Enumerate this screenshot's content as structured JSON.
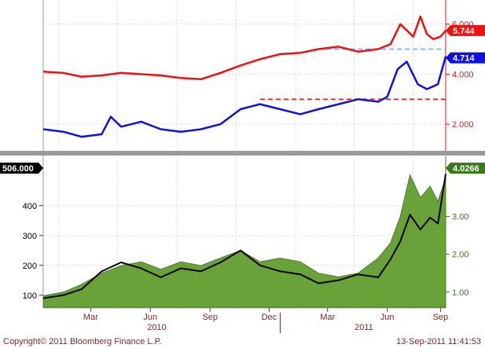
{
  "colors": {
    "red_series": "#ee1111",
    "blue_series": "#1111dd",
    "black_series": "#000000",
    "green_area": "#6aa23a",
    "green_axis": "#3a7a1a",
    "red_axis": "#ee1111",
    "grid": "#cccccc"
  },
  "footer": {
    "copyright": "Copyright© 2011 Bloomberg Finance L.P.",
    "timestamp": "13-Sep-2011 11:41:53"
  },
  "x_axis": {
    "months": [
      "Mar",
      "Jun",
      "Sep",
      "Dec",
      "Mar",
      "Jun",
      "Sep"
    ],
    "years": [
      "2010",
      "2011"
    ]
  },
  "chart_data": [
    {
      "type": "line",
      "panel": "top",
      "y_axis": {
        "side": "right",
        "ticks": [
          "6.000",
          "4.000",
          "2.000"
        ],
        "tick_values": [
          6,
          4,
          2
        ],
        "range": [
          1,
          6.9
        ]
      },
      "x_range": [
        "2010-01-01",
        "2011-09-13"
      ],
      "series": [
        {
          "color": "red",
          "last_value_label": "5.744",
          "x": [
            "2010-01-01",
            "2010-02-01",
            "2010-03-01",
            "2010-04-01",
            "2010-05-01",
            "2010-06-01",
            "2010-07-01",
            "2010-08-01",
            "2010-09-01",
            "2010-10-01",
            "2010-11-01",
            "2010-12-01",
            "2011-01-01",
            "2011-02-01",
            "2011-03-01",
            "2011-04-01",
            "2011-05-01",
            "2011-06-01",
            "2011-06-20",
            "2011-07-05",
            "2011-07-25",
            "2011-08-05",
            "2011-08-15",
            "2011-08-25",
            "2011-09-05",
            "2011-09-13"
          ],
          "y": [
            4.1,
            4.05,
            3.9,
            3.95,
            4.05,
            4.0,
            3.95,
            3.85,
            3.8,
            4.05,
            4.35,
            4.6,
            4.8,
            4.85,
            5.0,
            5.1,
            4.9,
            5.0,
            5.2,
            6.0,
            5.5,
            6.3,
            5.6,
            5.4,
            5.5,
            5.744
          ]
        },
        {
          "color": "blue",
          "last_value_label": "4.714",
          "x": [
            "2010-01-01",
            "2010-02-01",
            "2010-03-01",
            "2010-04-01",
            "2010-04-15",
            "2010-05-01",
            "2010-06-01",
            "2010-07-01",
            "2010-08-01",
            "2010-09-01",
            "2010-10-01",
            "2010-11-01",
            "2010-12-01",
            "2011-01-01",
            "2011-02-01",
            "2011-03-01",
            "2011-04-01",
            "2011-05-01",
            "2011-06-01",
            "2011-06-15",
            "2011-07-01",
            "2011-07-15",
            "2011-08-01",
            "2011-08-15",
            "2011-09-01",
            "2011-09-13"
          ],
          "y": [
            1.8,
            1.7,
            1.5,
            1.6,
            2.3,
            1.9,
            2.1,
            1.8,
            1.7,
            1.8,
            2.0,
            2.6,
            2.8,
            2.6,
            2.4,
            2.6,
            2.8,
            3.0,
            2.9,
            3.1,
            4.2,
            4.5,
            3.6,
            3.4,
            3.6,
            4.714
          ]
        }
      ],
      "reference_lines": [
        {
          "value": 3.0,
          "style": "dashed",
          "color": "red",
          "from": "2010-12-01"
        },
        {
          "value": 5.0,
          "style": "dashed",
          "color": "lightblue",
          "from": "2011-03-01"
        }
      ]
    },
    {
      "type": "area",
      "panel": "bottom",
      "y_axis_left": {
        "ticks": [
          "400",
          "300",
          "200",
          "100"
        ],
        "tick_values": [
          400,
          300,
          200,
          100
        ],
        "range": [
          60,
          560
        ],
        "last_value_label": "506.000"
      },
      "y_axis_right": {
        "ticks": [
          "3.00",
          "2.00",
          "1.00"
        ],
        "tick_values": [
          3,
          2,
          1
        ],
        "range": [
          0.6,
          4.55
        ],
        "last_value_label": "4.0266"
      },
      "x_range": [
        "2010-01-01",
        "2011-09-13"
      ],
      "series": [
        {
          "color": "green",
          "axis": "right",
          "x": [
            "2010-01-01",
            "2010-02-01",
            "2010-03-01",
            "2010-04-01",
            "2010-05-01",
            "2010-06-01",
            "2010-07-01",
            "2010-08-01",
            "2010-09-01",
            "2010-10-01",
            "2010-11-01",
            "2010-12-01",
            "2011-01-01",
            "2011-02-01",
            "2011-03-01",
            "2011-04-01",
            "2011-05-01",
            "2011-06-01",
            "2011-06-20",
            "2011-07-05",
            "2011-07-20",
            "2011-08-05",
            "2011-08-20",
            "2011-09-01",
            "2011-09-13"
          ],
          "y": [
            0.9,
            1.0,
            1.2,
            1.5,
            1.7,
            1.8,
            1.6,
            1.8,
            1.7,
            1.9,
            2.1,
            1.8,
            1.9,
            1.8,
            1.5,
            1.4,
            1.5,
            1.9,
            2.3,
            3.0,
            4.1,
            3.5,
            3.8,
            3.4,
            4.0266
          ]
        },
        {
          "color": "black",
          "axis": "left",
          "x": [
            "2010-01-01",
            "2010-02-01",
            "2010-03-01",
            "2010-04-01",
            "2010-05-01",
            "2010-06-01",
            "2010-07-01",
            "2010-08-01",
            "2010-09-01",
            "2010-10-01",
            "2010-11-01",
            "2010-12-01",
            "2011-01-01",
            "2011-02-01",
            "2011-03-01",
            "2011-04-01",
            "2011-05-01",
            "2011-06-01",
            "2011-06-20",
            "2011-07-05",
            "2011-07-20",
            "2011-08-05",
            "2011-08-20",
            "2011-09-01",
            "2011-09-13"
          ],
          "y": [
            90,
            100,
            120,
            180,
            210,
            190,
            160,
            190,
            180,
            210,
            250,
            200,
            180,
            170,
            140,
            150,
            170,
            160,
            220,
            280,
            370,
            320,
            360,
            340,
            506
          ]
        }
      ]
    }
  ]
}
